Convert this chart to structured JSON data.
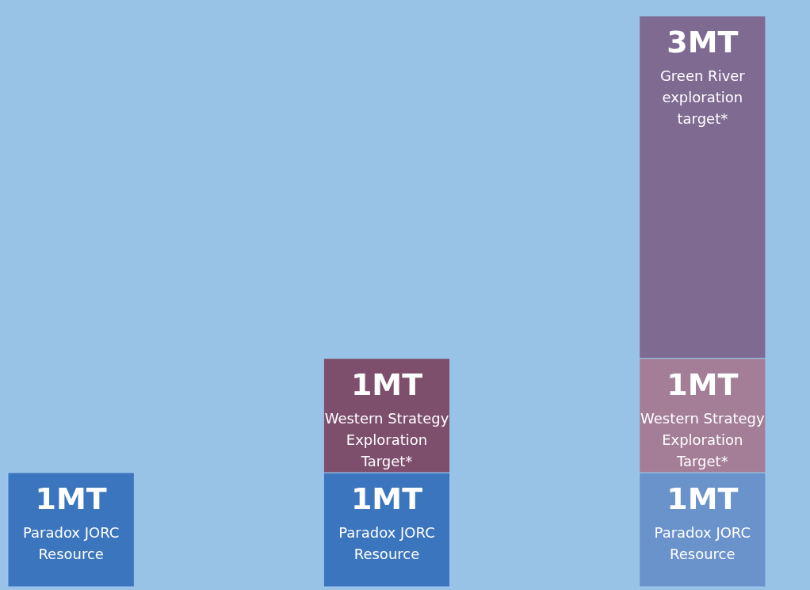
{
  "chart_data": {
    "type": "bar",
    "stacked": true,
    "categories": [
      null,
      null,
      null
    ],
    "series": [
      {
        "name": "Paradox JORC Resource",
        "colors": [
          "#3b75bd",
          "#3b75bd",
          "#6a93cc"
        ],
        "values": [
          1,
          1,
          1
        ],
        "value_labels": [
          "1MT",
          "1MT",
          "1MT"
        ]
      },
      {
        "name": "Western Strategy Exploration Target*",
        "colors": [
          null,
          "#7e4e6d",
          "#a47e96"
        ],
        "values": [
          null,
          1,
          1
        ],
        "value_labels": [
          null,
          "1MT",
          "1MT"
        ]
      },
      {
        "name": "Green River exploration target*",
        "colors": [
          null,
          null,
          "#7f6a92"
        ],
        "values": [
          null,
          null,
          3
        ],
        "value_labels": [
          null,
          null,
          "3MT"
        ]
      }
    ]
  }
}
